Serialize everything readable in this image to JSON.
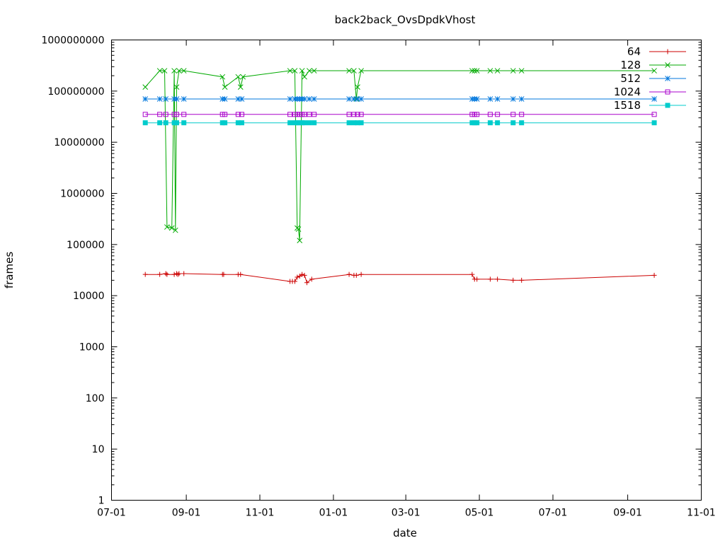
{
  "chart_data": {
    "type": "line",
    "title": "back2back_OvsDpdkVhost",
    "xlabel": "date",
    "ylabel": "frames",
    "y_scale": "log",
    "ylim": [
      1,
      1000000000
    ],
    "xlim": [
      "2015-07-01",
      "2016-11-01"
    ],
    "y_tick_values": [
      1,
      10,
      100,
      1000,
      10000,
      100000,
      1000000,
      10000000,
      100000000,
      1000000000
    ],
    "y_tick_labels": [
      "1",
      "10",
      "100",
      "1000",
      "10000",
      "100000",
      "1000000",
      "10000000",
      "100000000",
      "1000000000"
    ],
    "x_tick_values": [
      "2015-07-01",
      "2015-09-01",
      "2015-11-01",
      "2016-01-01",
      "2016-03-01",
      "2016-05-01",
      "2016-07-01",
      "2016-09-01",
      "2016-11-01"
    ],
    "x_tick_labels": [
      "07-01",
      "09-01",
      "11-01",
      "01-01",
      "03-01",
      "05-01",
      "07-01",
      "09-01",
      "11-01"
    ],
    "legend_position": "top-right",
    "grid": false,
    "series": [
      {
        "name": "64",
        "color": "#cc0000",
        "marker": "plus",
        "points": [
          [
            "2015-07-29",
            26000
          ],
          [
            "2015-08-10",
            26000
          ],
          [
            "2015-08-15",
            27000
          ],
          [
            "2015-08-16",
            26000
          ],
          [
            "2015-08-22",
            26000
          ],
          [
            "2015-08-24",
            27000
          ],
          [
            "2015-08-25",
            26000
          ],
          [
            "2015-08-26",
            27000
          ],
          [
            "2015-08-30",
            27000
          ],
          [
            "2015-10-01",
            26000
          ],
          [
            "2015-10-02",
            26000
          ],
          [
            "2015-10-14",
            26000
          ],
          [
            "2015-10-16",
            26000
          ],
          [
            "2015-11-26",
            19000
          ],
          [
            "2015-11-28",
            19000
          ],
          [
            "2015-11-30",
            19000
          ],
          [
            "2015-12-02",
            23000
          ],
          [
            "2015-12-04",
            24000
          ],
          [
            "2015-12-06",
            26000
          ],
          [
            "2015-12-08",
            25000
          ],
          [
            "2015-12-10",
            18000
          ],
          [
            "2015-12-14",
            21000
          ],
          [
            "2016-01-14",
            26000
          ],
          [
            "2016-01-18",
            25000
          ],
          [
            "2016-01-20",
            25000
          ],
          [
            "2016-01-24",
            26000
          ],
          [
            "2016-04-25",
            26000
          ],
          [
            "2016-04-27",
            21000
          ],
          [
            "2016-04-29",
            21000
          ],
          [
            "2016-05-10",
            21000
          ],
          [
            "2016-05-16",
            21000
          ],
          [
            "2016-05-29",
            20000
          ],
          [
            "2016-06-05",
            20000
          ],
          [
            "2016-09-23",
            25000
          ]
        ]
      },
      {
        "name": "128",
        "color": "#00aa00",
        "marker": "cross",
        "points": [
          [
            "2015-07-29",
            120000000
          ],
          [
            "2015-08-10",
            250000000
          ],
          [
            "2015-08-14",
            250000000
          ],
          [
            "2015-08-16",
            220000
          ],
          [
            "2015-08-20",
            210000
          ],
          [
            "2015-08-22",
            250000000
          ],
          [
            "2015-08-23",
            190000
          ],
          [
            "2015-08-24",
            120000000
          ],
          [
            "2015-08-26",
            250000000
          ],
          [
            "2015-08-30",
            250000000
          ],
          [
            "2015-10-01",
            190000000
          ],
          [
            "2015-10-03",
            120000000
          ],
          [
            "2015-10-14",
            190000000
          ],
          [
            "2015-10-16",
            120000000
          ],
          [
            "2015-10-18",
            190000000
          ],
          [
            "2015-11-26",
            250000000
          ],
          [
            "2015-11-30",
            250000000
          ],
          [
            "2015-12-02",
            210000
          ],
          [
            "2015-12-03",
            200000
          ],
          [
            "2015-12-04",
            120000
          ],
          [
            "2015-12-06",
            250000000
          ],
          [
            "2015-12-08",
            190000000
          ],
          [
            "2015-12-12",
            250000000
          ],
          [
            "2015-12-16",
            250000000
          ],
          [
            "2016-01-14",
            250000000
          ],
          [
            "2016-01-18",
            250000000
          ],
          [
            "2016-01-20",
            70000000
          ],
          [
            "2016-01-21",
            120000000
          ],
          [
            "2016-01-24",
            250000000
          ],
          [
            "2016-04-25",
            250000000
          ],
          [
            "2016-04-27",
            250000000
          ],
          [
            "2016-04-29",
            250000000
          ],
          [
            "2016-05-10",
            250000000
          ],
          [
            "2016-05-16",
            250000000
          ],
          [
            "2016-05-29",
            250000000
          ],
          [
            "2016-06-05",
            250000000
          ],
          [
            "2016-09-23",
            250000000
          ]
        ]
      },
      {
        "name": "512",
        "color": "#0077dd",
        "marker": "star",
        "points": [
          [
            "2015-07-29",
            70000000
          ],
          [
            "2015-08-10",
            70000000
          ],
          [
            "2015-08-15",
            70000000
          ],
          [
            "2015-08-22",
            70000000
          ],
          [
            "2015-08-24",
            70000000
          ],
          [
            "2015-08-30",
            70000000
          ],
          [
            "2015-10-01",
            70000000
          ],
          [
            "2015-10-03",
            70000000
          ],
          [
            "2015-10-14",
            70000000
          ],
          [
            "2015-10-17",
            70000000
          ],
          [
            "2015-11-26",
            70000000
          ],
          [
            "2015-11-30",
            70000000
          ],
          [
            "2015-12-02",
            70000000
          ],
          [
            "2015-12-04",
            70000000
          ],
          [
            "2015-12-06",
            70000000
          ],
          [
            "2015-12-08",
            70000000
          ],
          [
            "2015-12-12",
            70000000
          ],
          [
            "2015-12-16",
            70000000
          ],
          [
            "2016-01-14",
            70000000
          ],
          [
            "2016-01-18",
            70000000
          ],
          [
            "2016-01-21",
            70000000
          ],
          [
            "2016-01-24",
            70000000
          ],
          [
            "2016-04-25",
            70000000
          ],
          [
            "2016-04-27",
            70000000
          ],
          [
            "2016-04-29",
            70000000
          ],
          [
            "2016-05-10",
            70000000
          ],
          [
            "2016-05-16",
            70000000
          ],
          [
            "2016-05-29",
            70000000
          ],
          [
            "2016-06-05",
            70000000
          ],
          [
            "2016-09-23",
            70000000
          ]
        ]
      },
      {
        "name": "1024",
        "color": "#aa00cc",
        "marker": "open-square",
        "points": [
          [
            "2015-07-29",
            35000000
          ],
          [
            "2015-08-10",
            35000000
          ],
          [
            "2015-08-15",
            35000000
          ],
          [
            "2015-08-22",
            35000000
          ],
          [
            "2015-08-24",
            35000000
          ],
          [
            "2015-08-30",
            35000000
          ],
          [
            "2015-10-01",
            35000000
          ],
          [
            "2015-10-03",
            35000000
          ],
          [
            "2015-10-14",
            35000000
          ],
          [
            "2015-10-17",
            35000000
          ],
          [
            "2015-11-26",
            35000000
          ],
          [
            "2015-11-30",
            35000000
          ],
          [
            "2015-12-02",
            35000000
          ],
          [
            "2015-12-04",
            35000000
          ],
          [
            "2015-12-06",
            35000000
          ],
          [
            "2015-12-08",
            35000000
          ],
          [
            "2015-12-12",
            35000000
          ],
          [
            "2015-12-16",
            35000000
          ],
          [
            "2016-01-14",
            35000000
          ],
          [
            "2016-01-18",
            35000000
          ],
          [
            "2016-01-21",
            35000000
          ],
          [
            "2016-01-24",
            35000000
          ],
          [
            "2016-04-25",
            35000000
          ],
          [
            "2016-04-27",
            35000000
          ],
          [
            "2016-04-29",
            35000000
          ],
          [
            "2016-05-10",
            35000000
          ],
          [
            "2016-05-16",
            35000000
          ],
          [
            "2016-05-29",
            35000000
          ],
          [
            "2016-06-05",
            35000000
          ],
          [
            "2016-09-23",
            35000000
          ]
        ]
      },
      {
        "name": "1518",
        "color": "#00cccc",
        "marker": "filled-square",
        "points": [
          [
            "2015-07-29",
            24000000
          ],
          [
            "2015-08-10",
            24000000
          ],
          [
            "2015-08-15",
            24000000
          ],
          [
            "2015-08-22",
            24000000
          ],
          [
            "2015-08-24",
            24000000
          ],
          [
            "2015-08-30",
            24000000
          ],
          [
            "2015-10-01",
            24000000
          ],
          [
            "2015-10-03",
            24000000
          ],
          [
            "2015-10-14",
            24000000
          ],
          [
            "2015-10-17",
            24000000
          ],
          [
            "2015-11-26",
            24000000
          ],
          [
            "2015-11-30",
            24000000
          ],
          [
            "2015-12-02",
            24000000
          ],
          [
            "2015-12-04",
            24000000
          ],
          [
            "2015-12-06",
            24000000
          ],
          [
            "2015-12-08",
            24000000
          ],
          [
            "2015-12-12",
            24000000
          ],
          [
            "2015-12-16",
            24000000
          ],
          [
            "2016-01-14",
            24000000
          ],
          [
            "2016-01-18",
            24000000
          ],
          [
            "2016-01-21",
            24000000
          ],
          [
            "2016-01-24",
            24000000
          ],
          [
            "2016-04-25",
            24000000
          ],
          [
            "2016-04-27",
            24000000
          ],
          [
            "2016-04-29",
            24000000
          ],
          [
            "2016-05-10",
            24000000
          ],
          [
            "2016-05-16",
            24000000
          ],
          [
            "2016-05-29",
            24000000
          ],
          [
            "2016-06-05",
            24000000
          ],
          [
            "2016-09-23",
            24000000
          ]
        ]
      }
    ]
  }
}
